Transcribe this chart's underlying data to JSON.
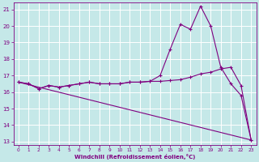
{
  "title": "",
  "xlabel": "Windchill (Refroidissement éolien,°C)",
  "ylabel": "",
  "bg_color": "#c5e8e8",
  "grid_color": "#aed4d4",
  "line_color": "#800080",
  "xlim": [
    -0.5,
    23.5
  ],
  "ylim": [
    12.8,
    21.4
  ],
  "yticks": [
    13,
    14,
    15,
    16,
    17,
    18,
    19,
    20,
    21
  ],
  "xticks": [
    0,
    1,
    2,
    3,
    4,
    5,
    6,
    7,
    8,
    9,
    10,
    11,
    12,
    13,
    14,
    15,
    16,
    17,
    18,
    19,
    20,
    21,
    22,
    23
  ],
  "line1_x": [
    0,
    1,
    2,
    3,
    4,
    5,
    6,
    7,
    8,
    9,
    10,
    11,
    12,
    13,
    14,
    15,
    16,
    17,
    18,
    19,
    20,
    21,
    22,
    23
  ],
  "line1_y": [
    16.6,
    16.5,
    16.2,
    16.4,
    16.3,
    16.4,
    16.5,
    16.6,
    16.5,
    16.5,
    16.5,
    16.6,
    16.6,
    16.65,
    17.0,
    18.6,
    20.1,
    19.8,
    21.2,
    20.0,
    17.5,
    16.5,
    15.8,
    13.1
  ],
  "line2_x": [
    0,
    1,
    2,
    3,
    4,
    5,
    6,
    7,
    8,
    9,
    10,
    11,
    12,
    13,
    14,
    15,
    16,
    17,
    18,
    19,
    20,
    21,
    22,
    23
  ],
  "line2_y": [
    16.6,
    16.5,
    16.2,
    16.4,
    16.3,
    16.4,
    16.5,
    16.6,
    16.5,
    16.5,
    16.5,
    16.6,
    16.6,
    16.65,
    16.65,
    16.7,
    16.75,
    16.9,
    17.1,
    17.2,
    17.4,
    17.5,
    16.4,
    13.1
  ],
  "line3_x": [
    0,
    23
  ],
  "line3_y": [
    16.6,
    13.1
  ]
}
